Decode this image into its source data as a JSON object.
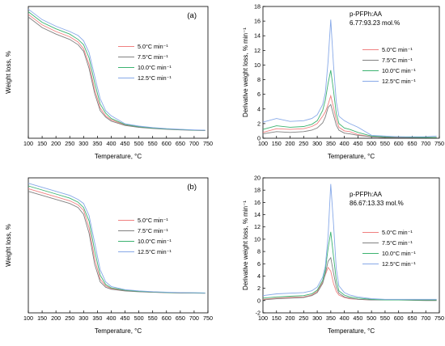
{
  "chart_data": [
    {
      "panel_label": "(a)",
      "type": "line",
      "xlabel": "Temperature, °C",
      "ylabel": "Weight loss, %",
      "xlim": [
        100,
        750
      ],
      "ylim": [
        0,
        100
      ],
      "xticks": [
        100,
        150,
        200,
        250,
        300,
        350,
        400,
        450,
        500,
        550,
        600,
        650,
        700,
        750
      ],
      "yticks": [],
      "grid": false,
      "legend": {
        "placement": "middle-right",
        "entries": [
          "5.0°C min⁻¹",
          "7.5°C min⁻¹",
          "10.0°C min⁻¹",
          "12.5°C min⁻¹"
        ]
      },
      "series": [
        {
          "name": "5.0°C min⁻¹",
          "color": "#f08080",
          "x": [
            100,
            150,
            200,
            250,
            280,
            300,
            320,
            340,
            360,
            380,
            400,
            450,
            500,
            550,
            600,
            650,
            700,
            740
          ],
          "values": [
            94,
            86,
            81,
            77,
            73,
            68,
            56,
            37,
            23,
            17,
            14,
            10,
            8.5,
            7.6,
            7.0,
            6.5,
            6.1,
            5.9
          ]
        },
        {
          "name": "7.5°C min⁻¹",
          "color": "#808080",
          "x": [
            100,
            150,
            200,
            250,
            280,
            300,
            320,
            340,
            360,
            380,
            400,
            450,
            500,
            550,
            600,
            650,
            700,
            740
          ],
          "values": [
            92,
            84,
            79,
            75,
            71,
            66,
            53,
            34,
            21,
            16,
            13,
            9.7,
            8.3,
            7.4,
            6.8,
            6.3,
            6.0,
            5.8
          ]
        },
        {
          "name": "10.0°C min⁻¹",
          "color": "#3cb371",
          "x": [
            100,
            150,
            200,
            250,
            280,
            300,
            320,
            340,
            360,
            380,
            400,
            450,
            500,
            550,
            600,
            650,
            700,
            740
          ],
          "values": [
            96,
            88,
            83,
            79,
            75,
            71,
            61,
            42,
            26,
            19,
            15,
            10.5,
            8.8,
            7.8,
            7.1,
            6.6,
            6.2,
            6.0
          ]
        },
        {
          "name": "12.5°C min⁻¹",
          "color": "#87a9e8",
          "x": [
            100,
            150,
            200,
            250,
            280,
            300,
            320,
            340,
            360,
            380,
            400,
            450,
            500,
            550,
            600,
            650,
            700,
            740
          ],
          "values": [
            98,
            90,
            85,
            81,
            78,
            74,
            65,
            47,
            30,
            21,
            17,
            11,
            9.2,
            8.1,
            7.3,
            6.8,
            6.3,
            6.1
          ]
        }
      ]
    },
    {
      "type": "line",
      "annotation": "p-PFPh:AA\n6.77:93.23 mol.%",
      "xlabel": "Temperature, °C",
      "ylabel": "Derivative weight loss, % min⁻¹",
      "xlim": [
        100,
        750
      ],
      "ylim": [
        0,
        18
      ],
      "xticks": [
        100,
        150,
        200,
        250,
        300,
        350,
        400,
        450,
        500,
        550,
        600,
        650,
        700,
        750
      ],
      "yticks": [
        0,
        2,
        4,
        6,
        8,
        10,
        12,
        14,
        16,
        18
      ],
      "grid": false,
      "legend": {
        "placement": "middle-right",
        "entries": [
          "5.0°C min⁻¹",
          "7.5°C min⁻¹",
          "10.0°C min⁻¹",
          "12.5°C min⁻¹"
        ]
      },
      "series": [
        {
          "name": "5.0°C min⁻¹",
          "color": "#f08080",
          "x": [
            100,
            150,
            200,
            250,
            280,
            300,
            320,
            330,
            340,
            350,
            360,
            370,
            380,
            400,
            420,
            450,
            500,
            550,
            600,
            700,
            740
          ],
          "values": [
            0.8,
            1.3,
            1.2,
            1.3,
            1.6,
            2.0,
            3.0,
            3.6,
            4.6,
            5.8,
            4.2,
            2.5,
            1.5,
            1.0,
            0.9,
            0.5,
            0.2,
            0.1,
            0.1,
            0.1,
            0.1
          ]
        },
        {
          "name": "7.5°C min⁻¹",
          "color": "#808080",
          "x": [
            100,
            150,
            200,
            250,
            280,
            300,
            320,
            330,
            340,
            350,
            360,
            370,
            380,
            400,
            420,
            450,
            500,
            550,
            600,
            700,
            740
          ],
          "values": [
            0.6,
            0.9,
            0.8,
            0.9,
            1.1,
            1.4,
            2.1,
            2.9,
            4.2,
            4.6,
            3.2,
            1.8,
            1.1,
            0.7,
            0.6,
            0.4,
            0.2,
            0.1,
            0.1,
            0.1,
            0.1
          ]
        },
        {
          "name": "10.0°C min⁻¹",
          "color": "#3cb371",
          "x": [
            100,
            150,
            200,
            250,
            280,
            300,
            320,
            330,
            340,
            350,
            360,
            370,
            380,
            400,
            420,
            450,
            500,
            550,
            600,
            700,
            740
          ],
          "values": [
            1.2,
            1.7,
            1.5,
            1.6,
            1.9,
            2.4,
            3.8,
            5.2,
            7.5,
            9.3,
            6.5,
            3.4,
            2.0,
            1.4,
            1.2,
            0.8,
            0.3,
            0.2,
            0.2,
            0.1,
            0.1
          ]
        },
        {
          "name": "12.5°C min⁻¹",
          "color": "#87a9e8",
          "x": [
            100,
            150,
            200,
            250,
            280,
            300,
            320,
            330,
            340,
            350,
            360,
            370,
            380,
            400,
            420,
            450,
            500,
            550,
            600,
            700,
            740
          ],
          "values": [
            2.2,
            2.7,
            2.3,
            2.4,
            2.7,
            3.2,
            4.6,
            6.2,
            10.5,
            16.2,
            10.0,
            5.0,
            3.0,
            2.4,
            2.0,
            1.5,
            0.4,
            0.3,
            0.2,
            0.2,
            0.3
          ]
        }
      ]
    },
    {
      "panel_label": "(b)",
      "type": "line",
      "xlabel": "Temperature, °C",
      "ylabel": "Weight loss, %",
      "xlim": [
        100,
        750
      ],
      "ylim": [
        0,
        100
      ],
      "xticks": [
        100,
        150,
        200,
        250,
        300,
        350,
        400,
        450,
        500,
        550,
        600,
        650,
        700,
        750
      ],
      "yticks": [],
      "grid": false,
      "legend": {
        "placement": "middle-right",
        "entries": [
          "5.0°C min⁻¹",
          "7.5°C min⁻¹",
          "10.0°C min⁻¹",
          "12.5°C min⁻¹"
        ]
      },
      "series": [
        {
          "name": "5.0°C min⁻¹",
          "color": "#f08080",
          "x": [
            100,
            150,
            200,
            250,
            280,
            300,
            320,
            340,
            360,
            380,
            400,
            450,
            500,
            550,
            600,
            650,
            700,
            740
          ],
          "values": [
            92,
            89,
            86,
            83,
            80,
            76,
            63,
            40,
            25,
            20,
            18,
            16.5,
            15.8,
            15.3,
            15.0,
            14.8,
            14.7,
            14.6
          ]
        },
        {
          "name": "7.5°C min⁻¹",
          "color": "#808080",
          "x": [
            100,
            150,
            200,
            250,
            280,
            300,
            320,
            340,
            360,
            380,
            400,
            450,
            500,
            550,
            600,
            650,
            700,
            740
          ],
          "values": [
            90,
            87,
            84,
            81,
            78,
            73,
            59,
            36,
            23,
            19,
            17.5,
            16.2,
            15.6,
            15.2,
            14.9,
            14.7,
            14.6,
            14.5
          ]
        },
        {
          "name": "10.0°C min⁻¹",
          "color": "#3cb371",
          "x": [
            100,
            150,
            200,
            250,
            280,
            300,
            320,
            340,
            360,
            380,
            400,
            450,
            500,
            550,
            600,
            650,
            700,
            740
          ],
          "values": [
            94,
            91,
            88,
            85,
            82,
            78,
            68,
            46,
            28,
            21,
            18.5,
            16.8,
            16.0,
            15.5,
            15.1,
            14.9,
            14.8,
            14.7
          ]
        },
        {
          "name": "12.5°C min⁻¹",
          "color": "#87a9e8",
          "x": [
            100,
            150,
            200,
            250,
            280,
            300,
            320,
            340,
            360,
            380,
            400,
            450,
            500,
            550,
            600,
            650,
            700,
            740
          ],
          "values": [
            96,
            93,
            90,
            87,
            84,
            81,
            72,
            52,
            32,
            23,
            19.5,
            17.2,
            16.3,
            15.7,
            15.3,
            15.0,
            14.9,
            14.8
          ]
        }
      ]
    },
    {
      "type": "line",
      "annotation": "p-PFPh:AA\n86.67:13.33 mol.%",
      "xlabel": "Temperature, °C",
      "ylabel": "Derivative weight loss, % min⁻¹",
      "xlim": [
        100,
        750
      ],
      "ylim": [
        -2,
        20
      ],
      "xticks": [
        100,
        150,
        200,
        250,
        300,
        350,
        400,
        450,
        500,
        550,
        600,
        650,
        700,
        750
      ],
      "yticks": [
        -2,
        0,
        2,
        4,
        6,
        8,
        10,
        12,
        14,
        16,
        18,
        20
      ],
      "grid": false,
      "legend": {
        "placement": "middle-right",
        "entries": [
          "5.0°C min⁻¹",
          "7.5°C min⁻¹",
          "10.0°C min⁻¹",
          "12.5°C min⁻¹"
        ]
      },
      "series": [
        {
          "name": "5.0°C min⁻¹",
          "color": "#f08080",
          "x": [
            100,
            150,
            200,
            250,
            280,
            300,
            320,
            330,
            340,
            350,
            360,
            370,
            380,
            400,
            420,
            450,
            500,
            550,
            600,
            700,
            740
          ],
          "values": [
            0.2,
            0.4,
            0.5,
            0.6,
            0.9,
            1.5,
            3.0,
            4.2,
            5.4,
            4.8,
            2.8,
            1.5,
            0.9,
            0.5,
            0.3,
            0.2,
            0.1,
            0.1,
            0.1,
            0.1,
            0.1
          ]
        },
        {
          "name": "7.5°C min⁻¹",
          "color": "#808080",
          "x": [
            100,
            150,
            200,
            250,
            280,
            300,
            320,
            330,
            340,
            350,
            360,
            370,
            380,
            400,
            420,
            450,
            500,
            550,
            600,
            700,
            740
          ],
          "values": [
            0.1,
            0.3,
            0.4,
            0.5,
            0.8,
            1.3,
            2.8,
            4.4,
            6.4,
            7.0,
            4.5,
            2.2,
            1.2,
            0.6,
            0.4,
            0.2,
            0.1,
            0.1,
            0.1,
            0.0,
            0.0
          ]
        },
        {
          "name": "10.0°C min⁻¹",
          "color": "#3cb371",
          "x": [
            100,
            150,
            200,
            250,
            280,
            300,
            320,
            330,
            340,
            350,
            360,
            370,
            380,
            400,
            420,
            450,
            500,
            550,
            600,
            700,
            740
          ],
          "values": [
            0.4,
            0.6,
            0.7,
            0.8,
            1.1,
            1.7,
            3.3,
            5.0,
            8.5,
            11.2,
            7.2,
            3.3,
            1.6,
            0.9,
            0.6,
            0.4,
            0.2,
            0.1,
            0.1,
            0.1,
            0.1
          ]
        },
        {
          "name": "12.5°C min⁻¹",
          "color": "#87a9e8",
          "x": [
            100,
            150,
            200,
            250,
            280,
            300,
            320,
            330,
            340,
            350,
            360,
            370,
            380,
            400,
            420,
            450,
            500,
            550,
            600,
            700,
            740
          ],
          "values": [
            0.8,
            1.1,
            1.2,
            1.3,
            1.6,
            2.2,
            3.8,
            5.6,
            10.5,
            19.0,
            12.5,
            5.2,
            2.4,
            1.3,
            0.9,
            0.6,
            0.3,
            0.2,
            0.2,
            0.2,
            0.2
          ]
        }
      ]
    }
  ]
}
